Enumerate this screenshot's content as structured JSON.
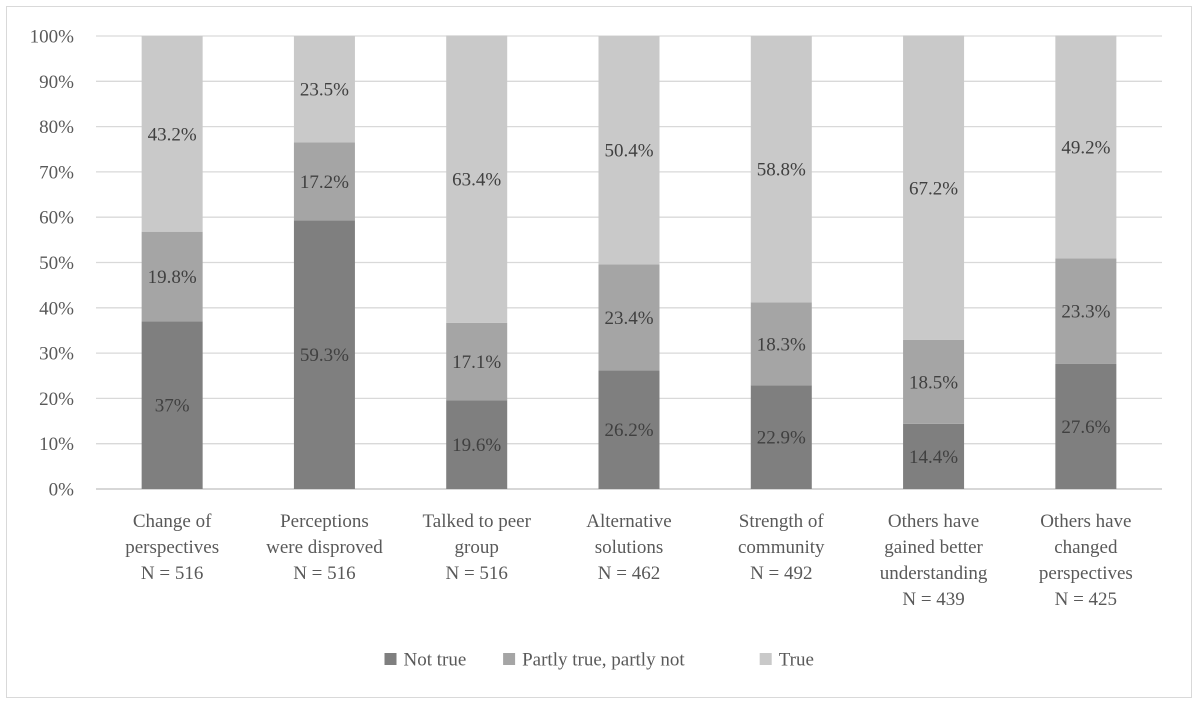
{
  "chart_data": {
    "type": "bar",
    "stacked": true,
    "percent": true,
    "categories": [
      [
        "Change of",
        "perspectives",
        "N = 516"
      ],
      [
        "Perceptions",
        "were disproved",
        "N = 516"
      ],
      [
        "Talked to peer",
        "group",
        "N = 516"
      ],
      [
        "Alternative",
        "solutions",
        "N = 462"
      ],
      [
        "Strength of",
        "community",
        "N = 492"
      ],
      [
        "Others have",
        "gained better",
        "understanding",
        "N = 439"
      ],
      [
        "Others have",
        "changed",
        "perspectives",
        "N = 425"
      ]
    ],
    "series": [
      {
        "name": "Not true",
        "color": "#7f7f7f",
        "values": [
          37,
          59.3,
          19.6,
          26.2,
          22.9,
          14.4,
          27.6
        ],
        "labels": [
          "37%",
          "59.3%",
          "19.6%",
          "26.2%",
          "22.9%",
          "14.4%",
          "27.6%"
        ]
      },
      {
        "name": "Partly true, partly not",
        "color": "#a5a5a5",
        "values": [
          19.8,
          17.2,
          17.1,
          23.4,
          18.3,
          18.5,
          23.3
        ],
        "labels": [
          "19.8%",
          "17.2%",
          "17.1%",
          "23.4%",
          "18.3%",
          "18.5%",
          "23.3%"
        ]
      },
      {
        "name": "True",
        "color": "#c9c9c9",
        "values": [
          43.2,
          23.5,
          63.4,
          50.4,
          58.8,
          67.2,
          49.2
        ],
        "labels": [
          "43.2%",
          "23.5%",
          "63.4%",
          "50.4%",
          "58.8%",
          "67.2%",
          "49.2%"
        ]
      }
    ],
    "yticks": [
      "0%",
      "10%",
      "20%",
      "30%",
      "40%",
      "50%",
      "60%",
      "70%",
      "80%",
      "90%",
      "100%"
    ],
    "ylim": [
      0,
      100
    ],
    "grid": true,
    "legend": "bottom",
    "title": "",
    "xlabel": "",
    "ylabel": ""
  }
}
